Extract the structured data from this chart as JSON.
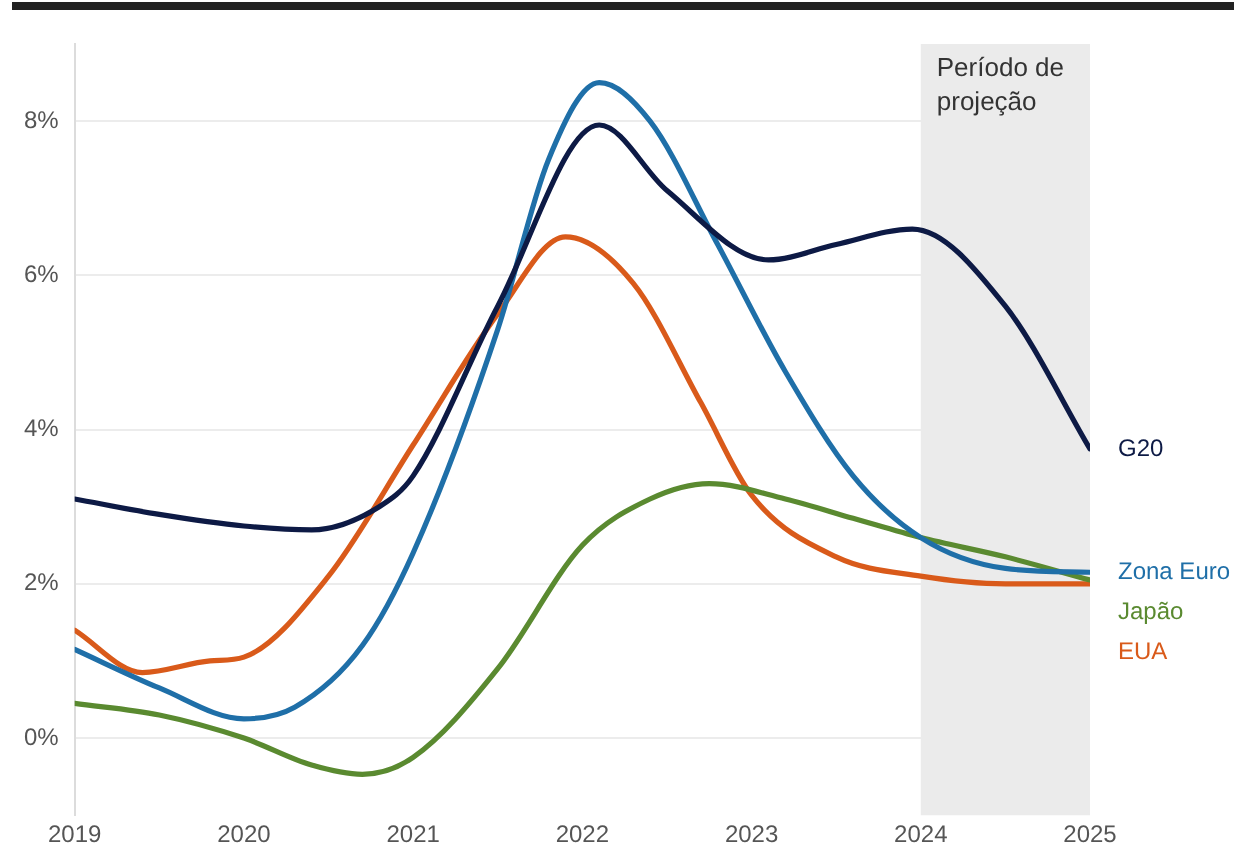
{
  "chart_data": {
    "type": "line",
    "x": [
      2019,
      2019.5,
      2020,
      2020.4,
      2020.8,
      2021,
      2021.5,
      2022.1,
      2022.5,
      2023.1,
      2023.5,
      2023.95,
      2024.5,
      2025
    ],
    "series": [
      {
        "name": "G20",
        "color": "#0d1a45",
        "values": [
          3.1,
          2.9,
          2.75,
          2.7,
          3.0,
          3.4,
          5.6,
          7.95,
          7.1,
          6.2,
          6.4,
          6.6,
          5.6,
          3.75
        ]
      },
      {
        "name": "Zona Euro",
        "color": "#1f6fa8",
        "x": [
          2019,
          2019.5,
          2020,
          2020.3,
          2020.7,
          2021,
          2021.5,
          2021.8,
          2022.1,
          2022.4,
          2022.8,
          2023.2,
          2023.6,
          2024,
          2024.5,
          2025
        ],
        "values": [
          1.15,
          0.65,
          0.25,
          0.4,
          1.2,
          2.4,
          5.3,
          7.5,
          8.5,
          8.0,
          6.4,
          4.75,
          3.4,
          2.6,
          2.2,
          2.15
        ]
      },
      {
        "name": "Japão",
        "color": "#5a8a30",
        "x": [
          2019,
          2019.5,
          2020,
          2020.4,
          2020.7,
          2021,
          2021.5,
          2022,
          2022.4,
          2022.75,
          2023.2,
          2023.6,
          2024,
          2024.5,
          2025
        ],
        "values": [
          0.45,
          0.3,
          0.0,
          -0.35,
          -0.47,
          -0.25,
          0.9,
          2.5,
          3.1,
          3.3,
          3.1,
          2.85,
          2.6,
          2.35,
          2.05
        ]
      },
      {
        "name": "EUA",
        "color": "#d95a1a",
        "x": [
          2019,
          2019.4,
          2019.8,
          2020,
          2020.5,
          2021,
          2021.5,
          2021.9,
          2022.3,
          2022.7,
          2023,
          2023.5,
          2024,
          2024.5,
          2025
        ],
        "values": [
          1.4,
          0.85,
          1.0,
          1.05,
          2.1,
          3.8,
          5.5,
          6.5,
          5.9,
          4.35,
          3.15,
          2.35,
          2.1,
          2.0,
          2.0
        ]
      }
    ],
    "xlim": [
      2019,
      2025
    ],
    "xticks": [
      2019,
      2020,
      2021,
      2022,
      2023,
      2024,
      2025
    ],
    "ylim": [
      -1,
      9
    ],
    "yticks": [
      {
        "value": 0,
        "label": "0%"
      },
      {
        "value": 2,
        "label": "2%"
      },
      {
        "value": 4,
        "label": "4%"
      },
      {
        "value": 6,
        "label": "6%"
      },
      {
        "value": 8,
        "label": "8%"
      }
    ],
    "bands": [
      {
        "axis": "x",
        "from": 2024,
        "to": 2025,
        "label": "Período de projeção",
        "color": "#ebebeb"
      }
    ],
    "grid": "y",
    "legend": false,
    "marker": "none",
    "line_style": "solid"
  }
}
